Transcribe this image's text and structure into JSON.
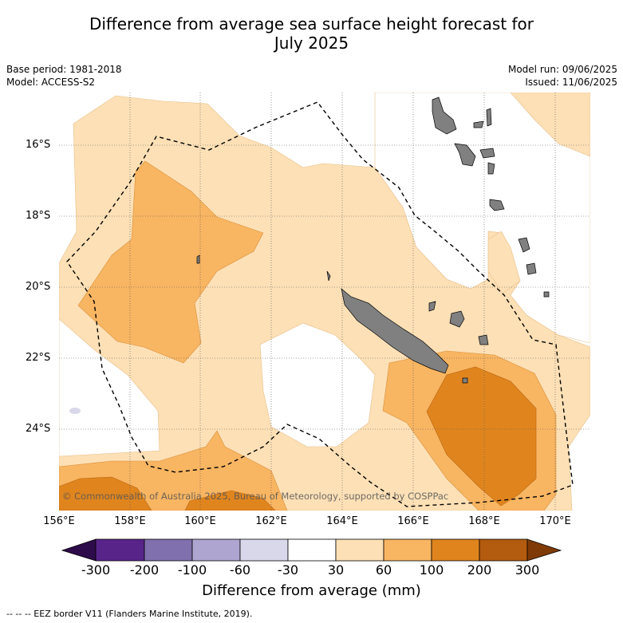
{
  "title_line1": "Difference from average sea surface height forecast for",
  "title_line2": "July 2025",
  "meta_left": [
    "Base period: 1981-2018",
    "Model: ACCESS-S2"
  ],
  "meta_right": [
    "Model run: 09/06/2025",
    "Issued: 11/06/2025"
  ],
  "x_ticks": [
    "156°E",
    "158°E",
    "160°E",
    "162°E",
    "164°E",
    "166°E",
    "168°E",
    "170°E"
  ],
  "y_ticks": [
    "16°S",
    "18°S",
    "20°S",
    "22°S",
    "24°S"
  ],
  "copyright": "© Commonwealth of Australia 2025, Bureau of Meteorology, supported by COSPPac",
  "colorbar": {
    "title": "Difference from average (mm)",
    "ticks": [
      "-300",
      "-200",
      "-100",
      "-60",
      "-30",
      "30",
      "60",
      "100",
      "200",
      "300"
    ],
    "colors": {
      "extend_low": "#2e0b4a",
      "n300_200": "#59248a",
      "n200_100": "#8070ad",
      "n100_60": "#aea6d0",
      "n60_30": "#d8d8ea",
      "n30_30": "#ffffff",
      "p30_60": "#fde0b6",
      "p60_100": "#f8b562",
      "p100_200": "#e0851e",
      "p200_300": "#b35b0e",
      "extend_high": "#7f3a06"
    }
  },
  "land_color": "#808080",
  "footnote": "--  --  -- EEZ border V11 (Flanders Marine Institute, 2019)."
}
